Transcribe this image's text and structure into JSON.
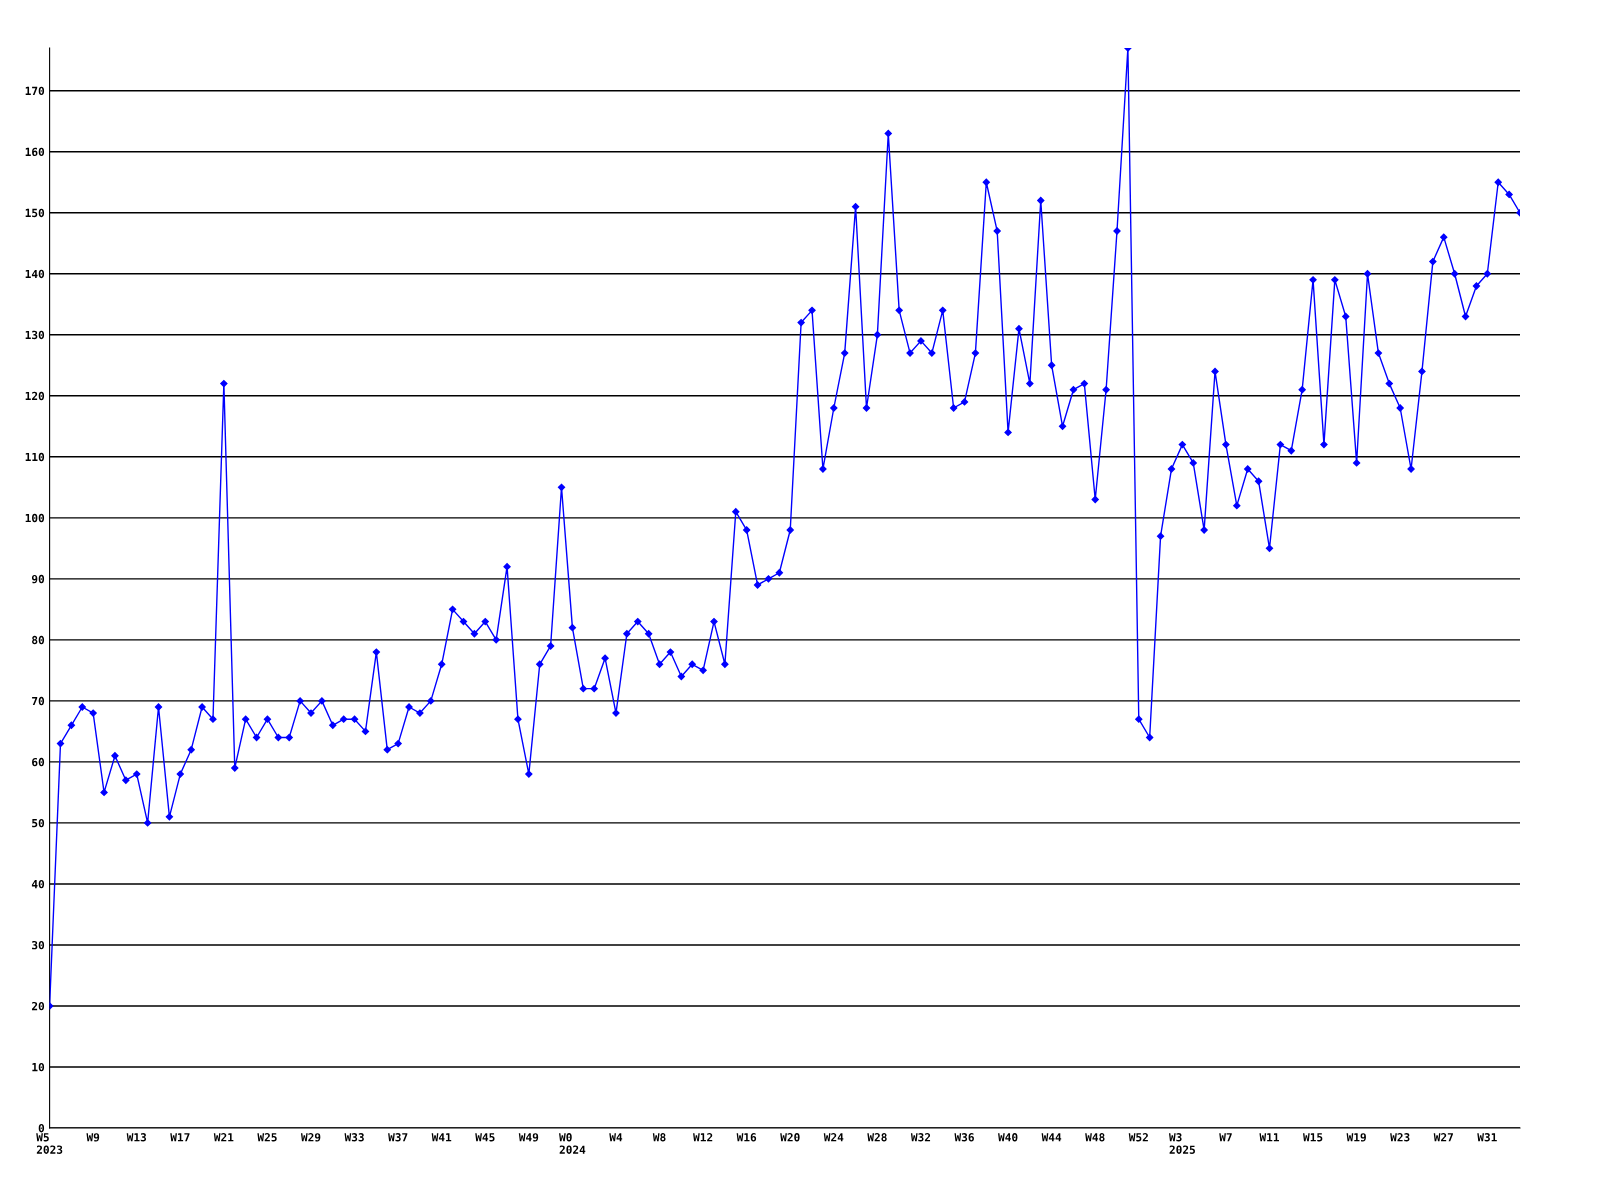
{
  "chart_data": {
    "type": "line",
    "categories": [
      "W5\n2023",
      null,
      null,
      null,
      "W9",
      null,
      null,
      null,
      "W13",
      null,
      null,
      null,
      "W17",
      null,
      null,
      null,
      "W21",
      null,
      null,
      null,
      "W25",
      null,
      null,
      null,
      "W29",
      null,
      null,
      null,
      "W33",
      null,
      null,
      null,
      "W37",
      null,
      null,
      null,
      "W41",
      null,
      null,
      null,
      "W45",
      null,
      null,
      null,
      "W49",
      null,
      null,
      null,
      "W0\n2024",
      null,
      null,
      null,
      "W4",
      null,
      null,
      null,
      "W8",
      null,
      null,
      null,
      "W12",
      null,
      null,
      null,
      "W16",
      null,
      null,
      null,
      "W20",
      null,
      null,
      null,
      "W24",
      null,
      null,
      null,
      "W28",
      null,
      null,
      null,
      "W32",
      null,
      null,
      null,
      "W36",
      null,
      null,
      null,
      "W40",
      null,
      null,
      null,
      "W44",
      null,
      null,
      null,
      "W48",
      null,
      null,
      null,
      "W52",
      null,
      null,
      null,
      "W3\n2025",
      null,
      null,
      null,
      "W7",
      null,
      null,
      null,
      "W11",
      null,
      null,
      null,
      "W15",
      null,
      null,
      null,
      "W19",
      null,
      null,
      null,
      "W23",
      null,
      null,
      null,
      "W27",
      null,
      null,
      null,
      "W31",
      null,
      null,
      null
    ],
    "series": [
      {
        "color": "#0000ff",
        "values": [
          20,
          63,
          66,
          69,
          68,
          55,
          61,
          57,
          58,
          50,
          69,
          51,
          58,
          62,
          69,
          67,
          122,
          59,
          67,
          64,
          67,
          64,
          64,
          70,
          68,
          70,
          66,
          67,
          67,
          65,
          78,
          62,
          63,
          69,
          68,
          70,
          76,
          85,
          83,
          81,
          83,
          80,
          92,
          67,
          58,
          76,
          79,
          105,
          82,
          72,
          72,
          77,
          68,
          81,
          83,
          81,
          76,
          78,
          74,
          76,
          75,
          83,
          76,
          101,
          98,
          89,
          90,
          91,
          98,
          132,
          134,
          108,
          118,
          127,
          151,
          118,
          130,
          163,
          134,
          127,
          129,
          127,
          134,
          118,
          119,
          127,
          155,
          147,
          114,
          131,
          122,
          152,
          125,
          115,
          121,
          122,
          103,
          121,
          147,
          177,
          67,
          64,
          97,
          108,
          112,
          109,
          98,
          124,
          112,
          102,
          108,
          106,
          95,
          112,
          111,
          121,
          139,
          112,
          139,
          133,
          109,
          140,
          127,
          122,
          118,
          108,
          124,
          142,
          146,
          140,
          133,
          138,
          140,
          155,
          153,
          150
        ]
      }
    ],
    "ylim": [
      0,
      177
    ],
    "yticks": [
      0,
      10,
      20,
      30,
      40,
      50,
      60,
      70,
      80,
      90,
      100,
      110,
      120,
      130,
      140,
      150,
      160,
      170
    ],
    "grid": "y",
    "marker": "diamond",
    "line_style": "solid"
  }
}
